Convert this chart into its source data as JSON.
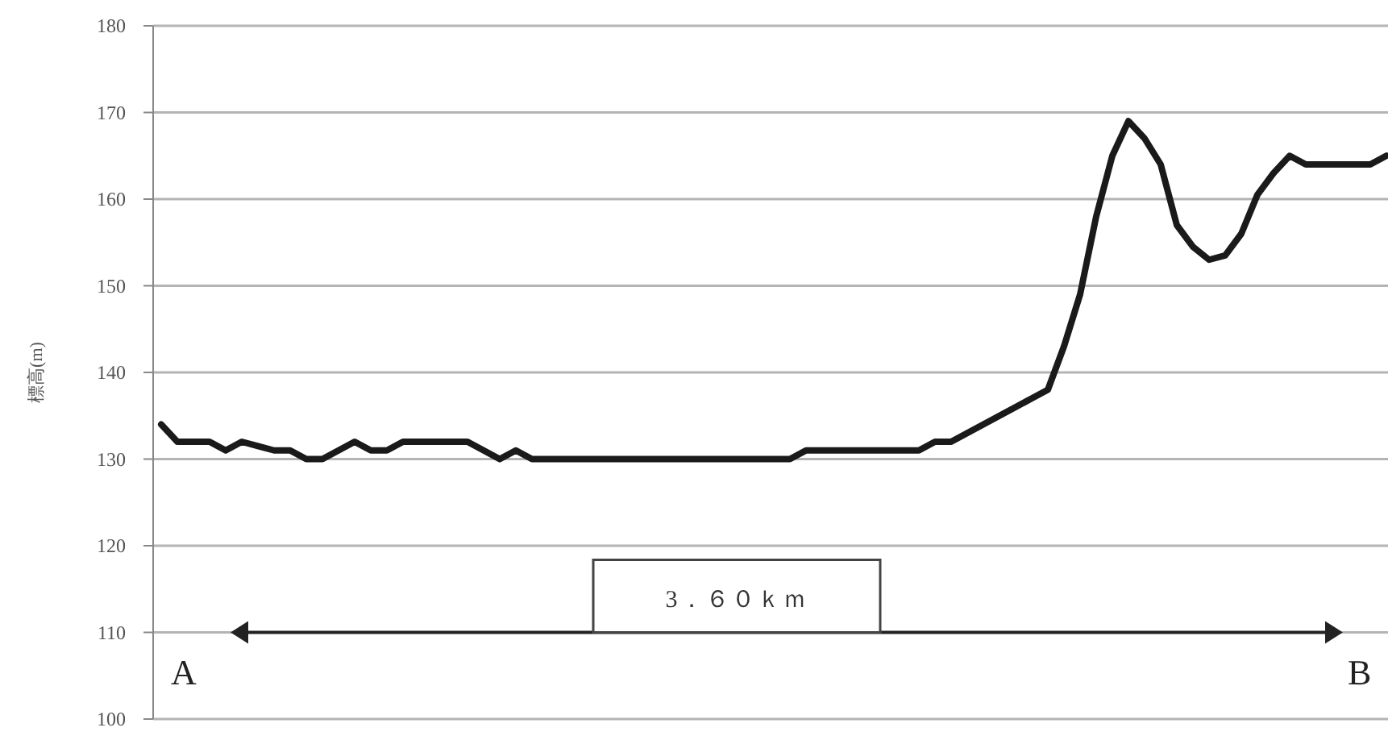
{
  "chart_data": {
    "type": "line",
    "ylabel": "標高(m)",
    "categories": [
      null,
      null,
      null,
      null,
      null,
      null,
      null,
      null,
      null,
      null,
      null,
      null,
      null,
      null,
      null,
      null,
      null,
      null,
      null,
      null,
      null,
      null,
      null,
      null,
      null,
      null,
      null,
      null,
      null,
      null,
      null,
      null,
      null,
      null,
      null,
      null,
      null,
      null,
      null,
      null,
      null,
      null,
      null,
      null,
      null,
      null,
      null,
      null,
      null,
      null,
      null,
      null,
      null,
      null,
      null,
      null,
      null,
      null,
      null,
      null,
      null,
      null,
      null,
      null,
      null,
      null,
      null,
      null,
      null,
      null,
      null,
      null,
      null,
      null,
      null,
      null,
      null
    ],
    "values": [
      134,
      132,
      132,
      132,
      131,
      132,
      131.5,
      131,
      131,
      130,
      130,
      131,
      132,
      131,
      131,
      132,
      132,
      132,
      132,
      132,
      131,
      130,
      131,
      130,
      130,
      130,
      130,
      130,
      130,
      130,
      130,
      130,
      130,
      130,
      130,
      130,
      130,
      130,
      130,
      130,
      131,
      131,
      131,
      131,
      131,
      131,
      131,
      131,
      132,
      132,
      133,
      134,
      135,
      136,
      137,
      138,
      143,
      149,
      158,
      165,
      169,
      167,
      164,
      157,
      154.5,
      153,
      153.5,
      156,
      160.5,
      163,
      165,
      164,
      164,
      164,
      164,
      164,
      165
    ],
    "color": "#1a1a1a",
    "ylim": [
      100,
      180
    ],
    "yticks": [
      100,
      110,
      120,
      130,
      140,
      150,
      160,
      170,
      180
    ],
    "grid": "y",
    "tick_labels": "y",
    "annotations": [
      "3．６０ｋｍ",
      "A",
      "B"
    ]
  }
}
